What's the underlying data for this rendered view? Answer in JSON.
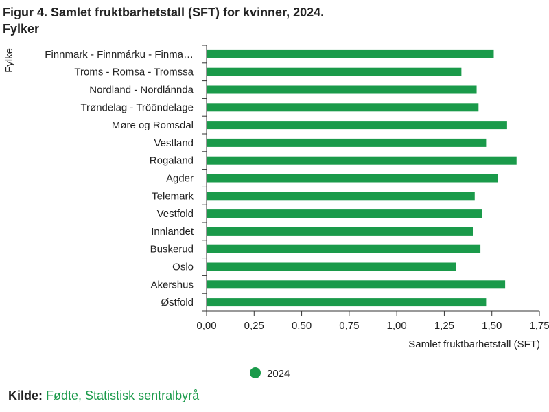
{
  "title": "Figur 4. Samlet fruktbarhetstall (SFT) for kvinner, 2024.",
  "subtitle": "Fylker",
  "source": {
    "label": "Kilde:",
    "text": "Fødte, Statistisk sentralbyrå"
  },
  "colors": {
    "bar": "#1a9a4a",
    "axis": "#333333",
    "source_link": "#1a9a4a"
  },
  "chart_data": {
    "type": "bar",
    "orientation": "horizontal",
    "ylabel": "Fylke",
    "xlabel": "Samlet fruktbarhetstall (SFT)",
    "xlim": [
      0,
      1.75
    ],
    "xticks": [
      "0,00",
      "0,25",
      "0,50",
      "0,75",
      "1,00",
      "1,25",
      "1,50",
      "1,75"
    ],
    "grid": false,
    "legend_position": "bottom",
    "categories": [
      "Finnmark - Finnmárku - Finma…",
      "Troms - Romsa - Tromssa",
      "Nordland - Nordlánnda",
      "Trøndelag - Trööndelage",
      "Møre og Romsdal",
      "Vestland",
      "Rogaland",
      "Agder",
      "Telemark",
      "Vestfold",
      "Innlandet",
      "Buskerud",
      "Oslo",
      "Akershus",
      "Østfold"
    ],
    "series": [
      {
        "name": "2024",
        "values": [
          1.51,
          1.34,
          1.42,
          1.43,
          1.58,
          1.47,
          1.63,
          1.53,
          1.41,
          1.45,
          1.4,
          1.44,
          1.31,
          1.57,
          1.47
        ]
      }
    ]
  }
}
